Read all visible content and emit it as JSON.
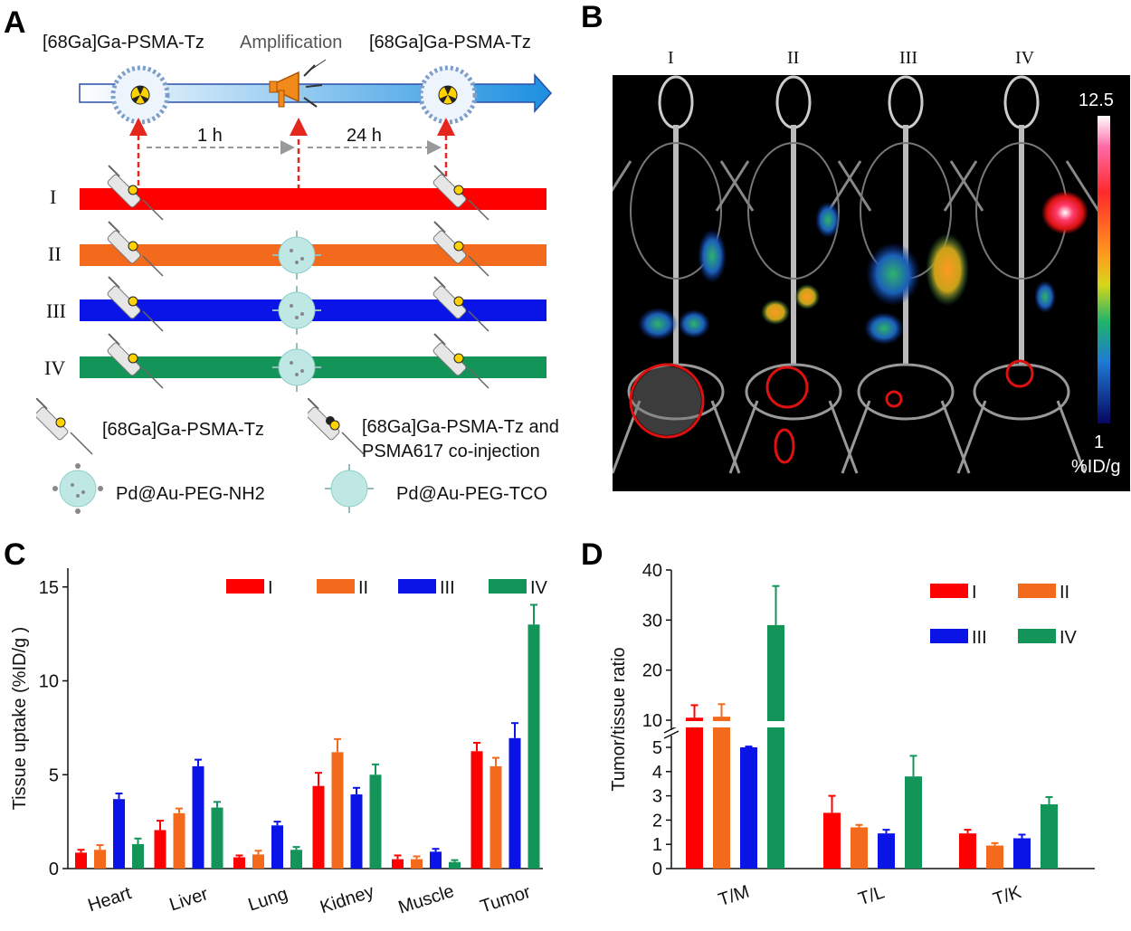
{
  "panels": {
    "a": "A",
    "b": "B",
    "c": "C",
    "d": "D"
  },
  "panelA": {
    "top_left_label": "[68Ga]Ga-PSMA-Tz",
    "top_middle_label": "Amplification",
    "top_right_label": "[68Ga]Ga-PSMA-Tz",
    "interval1": "1 h",
    "interval2": "24 h",
    "groups": [
      "I",
      "II",
      "III",
      "IV"
    ],
    "group_colors": [
      "#ff0000",
      "#f46a1c",
      "#0a14e6",
      "#13955a"
    ],
    "legend": {
      "tracer": "[68Ga]Ga-PSMA-Tz",
      "coinject_line1": "[68Ga]Ga-PSMA-Tz and",
      "coinject_line2": "PSMA617  co-injection",
      "np_nh2": "Pd@Au-PEG-NH2",
      "np_tco": "Pd@Au-PEG-TCO"
    }
  },
  "panelB": {
    "columns": [
      "I",
      "II",
      "III",
      "IV"
    ],
    "scale_max": "12.5",
    "scale_min": "1",
    "scale_unit": "%ID/g"
  },
  "chart_data": [
    {
      "panel": "C",
      "type": "bar",
      "ylabel": "Tissue uptake (%ID/g )",
      "ylim": [
        0,
        16
      ],
      "yticks": [
        "0",
        "5",
        "10",
        "15"
      ],
      "categories": [
        "Heart",
        "Liver",
        "Lung",
        "Kidney",
        "Muscle",
        "Tumor"
      ],
      "series": [
        {
          "name": "I",
          "color": "#ff0000",
          "values": [
            0.85,
            2.05,
            0.6,
            4.4,
            0.5,
            6.25
          ],
          "errors": [
            0.15,
            0.5,
            0.1,
            0.7,
            0.2,
            0.45
          ]
        },
        {
          "name": "II",
          "color": "#f46a1c",
          "values": [
            1.0,
            2.95,
            0.75,
            6.2,
            0.5,
            5.45
          ],
          "errors": [
            0.25,
            0.25,
            0.2,
            0.7,
            0.15,
            0.45
          ]
        },
        {
          "name": "III",
          "color": "#0a14e6",
          "values": [
            3.7,
            5.45,
            2.3,
            3.95,
            0.9,
            6.95
          ],
          "errors": [
            0.3,
            0.35,
            0.2,
            0.35,
            0.15,
            0.8
          ]
        },
        {
          "name": "IV",
          "color": "#13955a",
          "values": [
            1.3,
            3.25,
            1.0,
            5.0,
            0.35,
            13.0
          ],
          "errors": [
            0.3,
            0.3,
            0.15,
            0.55,
            0.1,
            1.05
          ]
        }
      ],
      "legend": "top"
    },
    {
      "panel": "D",
      "type": "bar",
      "ylabel": "Tumor/tissue ratio",
      "axis_break": [
        5.5,
        8
      ],
      "yticks_lower": [
        "0",
        "1",
        "2",
        "3",
        "4",
        "5"
      ],
      "yticks_upper": [
        "10",
        "20",
        "30",
        "40"
      ],
      "categories": [
        "T/M",
        "T/L",
        "T/K"
      ],
      "series": [
        {
          "name": "I",
          "color": "#ff0000",
          "values": [
            10.5,
            2.3,
            1.45
          ],
          "errors": [
            2.5,
            0.7,
            0.15
          ]
        },
        {
          "name": "II",
          "color": "#f46a1c",
          "values": [
            10.7,
            1.7,
            0.95
          ],
          "errors": [
            2.5,
            0.1,
            0.1
          ]
        },
        {
          "name": "III",
          "color": "#0a14e6",
          "values": [
            5.0,
            1.45,
            1.25
          ],
          "errors": [
            0.15,
            0.15,
            0.15
          ]
        },
        {
          "name": "IV",
          "color": "#13955a",
          "values": [
            29.0,
            3.8,
            2.65
          ],
          "errors": [
            7.8,
            0.85,
            0.3
          ]
        }
      ],
      "legend": "top-right"
    }
  ]
}
